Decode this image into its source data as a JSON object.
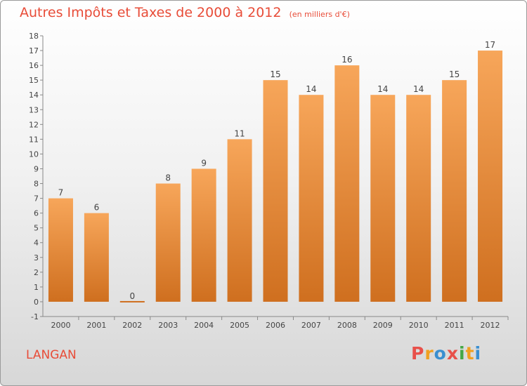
{
  "page": {
    "title": "Autres Impôts et Taxes de 2000 à 2012",
    "unit": "(en milliers d'€)",
    "city": "LANGAN",
    "logo": {
      "letters": [
        "P",
        "r",
        "o",
        "x",
        "i",
        "t",
        "i"
      ],
      "colors": [
        "#e8504a",
        "#f0a020",
        "#3a8fd0",
        "#e8504a",
        "#45a846",
        "#f0a020",
        "#3a8fd0"
      ]
    }
  },
  "colors": {
    "title": "#e84c38",
    "bar_light": "#f7a65a",
    "bar_dark": "#cf6f1f"
  },
  "chart_data": {
    "type": "bar",
    "title": "Autres Impôts et Taxes de 2000 à 2012",
    "subtitle": "(en milliers d'€)",
    "categories": [
      "2000",
      "2001",
      "2002",
      "2003",
      "2004",
      "2005",
      "2006",
      "2007",
      "2008",
      "2009",
      "2010",
      "2011",
      "2012"
    ],
    "values": [
      7,
      6,
      0,
      8,
      9,
      11,
      15,
      14,
      16,
      14,
      14,
      15,
      17
    ],
    "y_ticks": [
      -1,
      0,
      1,
      2,
      3,
      4,
      5,
      6,
      7,
      8,
      9,
      10,
      11,
      12,
      13,
      14,
      15,
      16,
      17,
      18
    ],
    "ylim": [
      -1,
      18
    ],
    "grid": false,
    "legend": "none"
  }
}
